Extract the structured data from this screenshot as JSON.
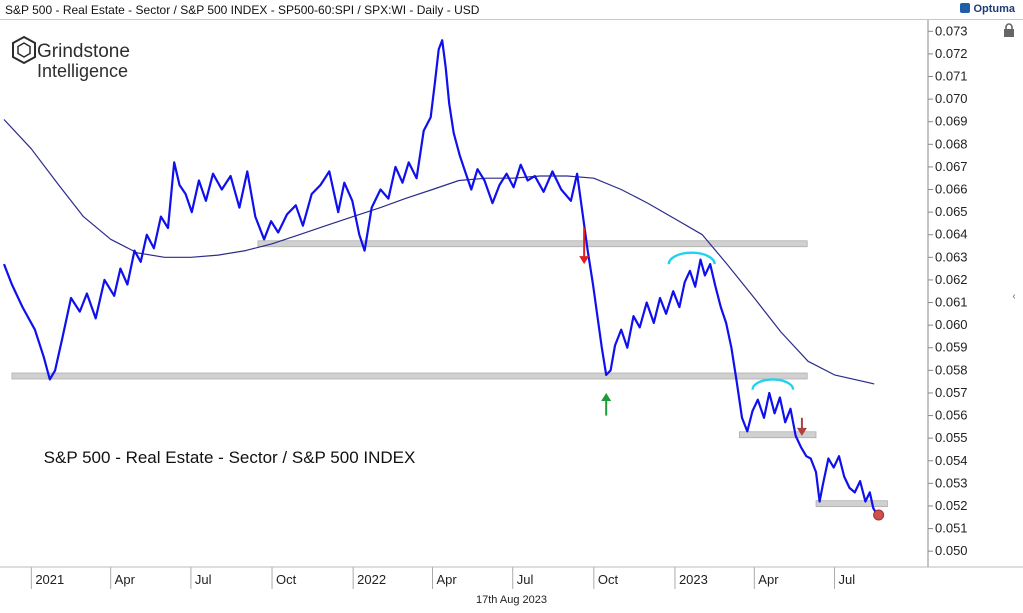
{
  "header": {
    "title": "S&P 500 - Real Estate - Sector / S&P 500 INDEX - SP500-60:SPI / SPX:WI - Daily - USD",
    "brand": "Optuma"
  },
  "watermark": {
    "line1": "Grindstone",
    "line2": "Intelligence"
  },
  "footer": {
    "date": "17th Aug 2023"
  },
  "colors": {
    "price": "#1010ee",
    "ma": "#2b2b8a",
    "support": "#d0d0d0",
    "arc": "#22d0f0",
    "arrow_down": "#e02020",
    "arrow_down2": "#b04040",
    "arrow_up": "#1e9a3a",
    "dot": "#d05050"
  },
  "chart_data": {
    "type": "line",
    "title": "S&P 500 - Real Estate - Sector / S&P 500 INDEX",
    "xlabel": "",
    "ylabel": "",
    "ylim": [
      0.0493,
      0.0735
    ],
    "xlim": [
      "2020-12-01",
      "2023-10-15"
    ],
    "grid": false,
    "y_ticks": [
      "0.073",
      "0.072",
      "0.071",
      "0.070",
      "0.069",
      "0.068",
      "0.067",
      "0.066",
      "0.065",
      "0.064",
      "0.063",
      "0.062",
      "0.061",
      "0.060",
      "0.059",
      "0.058",
      "0.057",
      "0.056",
      "0.055",
      "0.054",
      "0.053",
      "0.052",
      "0.051",
      "0.050"
    ],
    "x_ticks": [
      {
        "date": "2021-01-01",
        "label": "2021"
      },
      {
        "date": "2021-04-01",
        "label": "Apr"
      },
      {
        "date": "2021-07-01",
        "label": "Jul"
      },
      {
        "date": "2021-10-01",
        "label": "Oct"
      },
      {
        "date": "2022-01-01",
        "label": "2022"
      },
      {
        "date": "2022-04-01",
        "label": "Apr"
      },
      {
        "date": "2022-07-01",
        "label": "Jul"
      },
      {
        "date": "2022-10-01",
        "label": "Oct"
      },
      {
        "date": "2023-01-01",
        "label": "2023"
      },
      {
        "date": "2023-04-01",
        "label": "Apr"
      },
      {
        "date": "2023-07-01",
        "label": "Jul"
      }
    ],
    "series": [
      {
        "name": "S&P 500 - Real Estate - Sector / S&P 500 INDEX",
        "role": "price",
        "points": [
          [
            "2020-12-01",
            0.0627
          ],
          [
            "2020-12-10",
            0.0618
          ],
          [
            "2020-12-22",
            0.0608
          ],
          [
            "2021-01-05",
            0.0598
          ],
          [
            "2021-01-15",
            0.0586
          ],
          [
            "2021-01-22",
            0.0576
          ],
          [
            "2021-01-28",
            0.058
          ],
          [
            "2021-02-05",
            0.0594
          ],
          [
            "2021-02-15",
            0.0612
          ],
          [
            "2021-02-25",
            0.0606
          ],
          [
            "2021-03-05",
            0.0614
          ],
          [
            "2021-03-15",
            0.0603
          ],
          [
            "2021-03-25",
            0.062
          ],
          [
            "2021-04-05",
            0.0613
          ],
          [
            "2021-04-12",
            0.0625
          ],
          [
            "2021-04-20",
            0.0618
          ],
          [
            "2021-04-28",
            0.0633
          ],
          [
            "2021-05-05",
            0.0628
          ],
          [
            "2021-05-12",
            0.064
          ],
          [
            "2021-05-20",
            0.0634
          ],
          [
            "2021-05-28",
            0.0648
          ],
          [
            "2021-06-05",
            0.0643
          ],
          [
            "2021-06-12",
            0.0672
          ],
          [
            "2021-06-18",
            0.0662
          ],
          [
            "2021-06-25",
            0.0658
          ],
          [
            "2021-07-02",
            0.065
          ],
          [
            "2021-07-10",
            0.0664
          ],
          [
            "2021-07-18",
            0.0655
          ],
          [
            "2021-07-26",
            0.0667
          ],
          [
            "2021-08-05",
            0.066
          ],
          [
            "2021-08-15",
            0.0666
          ],
          [
            "2021-08-25",
            0.0652
          ],
          [
            "2021-09-03",
            0.0668
          ],
          [
            "2021-09-12",
            0.0648
          ],
          [
            "2021-09-22",
            0.0638
          ],
          [
            "2021-09-30",
            0.0646
          ],
          [
            "2021-10-08",
            0.0641
          ],
          [
            "2021-10-18",
            0.0649
          ],
          [
            "2021-10-28",
            0.0653
          ],
          [
            "2021-11-05",
            0.0644
          ],
          [
            "2021-11-15",
            0.0658
          ],
          [
            "2021-11-25",
            0.0662
          ],
          [
            "2021-12-05",
            0.0668
          ],
          [
            "2021-12-15",
            0.065
          ],
          [
            "2021-12-22",
            0.0663
          ],
          [
            "2021-12-31",
            0.0655
          ],
          [
            "2022-01-08",
            0.064
          ],
          [
            "2022-01-14",
            0.0633
          ],
          [
            "2022-01-22",
            0.0652
          ],
          [
            "2022-02-01",
            0.066
          ],
          [
            "2022-02-10",
            0.0656
          ],
          [
            "2022-02-18",
            0.067
          ],
          [
            "2022-02-26",
            0.0663
          ],
          [
            "2022-03-05",
            0.0672
          ],
          [
            "2022-03-14",
            0.0665
          ],
          [
            "2022-03-22",
            0.0686
          ],
          [
            "2022-03-30",
            0.0692
          ],
          [
            "2022-04-04",
            0.0708
          ],
          [
            "2022-04-08",
            0.0722
          ],
          [
            "2022-04-12",
            0.0726
          ],
          [
            "2022-04-16",
            0.0714
          ],
          [
            "2022-04-20",
            0.0698
          ],
          [
            "2022-04-25",
            0.0685
          ],
          [
            "2022-05-02",
            0.0675
          ],
          [
            "2022-05-08",
            0.0668
          ],
          [
            "2022-05-15",
            0.066
          ],
          [
            "2022-05-22",
            0.0669
          ],
          [
            "2022-05-30",
            0.0664
          ],
          [
            "2022-06-08",
            0.0654
          ],
          [
            "2022-06-16",
            0.0662
          ],
          [
            "2022-06-24",
            0.0667
          ],
          [
            "2022-07-02",
            0.0661
          ],
          [
            "2022-07-10",
            0.0671
          ],
          [
            "2022-07-18",
            0.0664
          ],
          [
            "2022-07-26",
            0.0666
          ],
          [
            "2022-08-05",
            0.0659
          ],
          [
            "2022-08-15",
            0.0668
          ],
          [
            "2022-08-25",
            0.066
          ],
          [
            "2022-09-05",
            0.0655
          ],
          [
            "2022-09-12",
            0.0667
          ],
          [
            "2022-09-18",
            0.065
          ],
          [
            "2022-09-24",
            0.0633
          ],
          [
            "2022-09-30",
            0.0618
          ],
          [
            "2022-10-05",
            0.0604
          ],
          [
            "2022-10-10",
            0.059
          ],
          [
            "2022-10-15",
            0.0578
          ],
          [
            "2022-10-20",
            0.058
          ],
          [
            "2022-10-25",
            0.0591
          ],
          [
            "2022-11-01",
            0.0598
          ],
          [
            "2022-11-08",
            0.059
          ],
          [
            "2022-11-15",
            0.0604
          ],
          [
            "2022-11-22",
            0.0599
          ],
          [
            "2022-11-30",
            0.061
          ],
          [
            "2022-12-08",
            0.0601
          ],
          [
            "2022-12-15",
            0.0612
          ],
          [
            "2022-12-22",
            0.0605
          ],
          [
            "2022-12-30",
            0.0615
          ],
          [
            "2023-01-06",
            0.0608
          ],
          [
            "2023-01-12",
            0.0619
          ],
          [
            "2023-01-18",
            0.0624
          ],
          [
            "2023-01-24",
            0.0617
          ],
          [
            "2023-01-30",
            0.0629
          ],
          [
            "2023-02-04",
            0.0622
          ],
          [
            "2023-02-10",
            0.0627
          ],
          [
            "2023-02-16",
            0.0617
          ],
          [
            "2023-02-22",
            0.0608
          ],
          [
            "2023-02-28",
            0.0601
          ],
          [
            "2023-03-06",
            0.059
          ],
          [
            "2023-03-12",
            0.0575
          ],
          [
            "2023-03-18",
            0.0559
          ],
          [
            "2023-03-24",
            0.0553
          ],
          [
            "2023-03-30",
            0.0562
          ],
          [
            "2023-04-05",
            0.0567
          ],
          [
            "2023-04-12",
            0.0559
          ],
          [
            "2023-04-18",
            0.057
          ],
          [
            "2023-04-24",
            0.0561
          ],
          [
            "2023-04-30",
            0.0568
          ],
          [
            "2023-05-06",
            0.0557
          ],
          [
            "2023-05-12",
            0.0563
          ],
          [
            "2023-05-18",
            0.0551
          ],
          [
            "2023-05-24",
            0.0546
          ],
          [
            "2023-05-30",
            0.0542
          ],
          [
            "2023-06-04",
            0.0541
          ],
          [
            "2023-06-10",
            0.0535
          ],
          [
            "2023-06-14",
            0.0522
          ],
          [
            "2023-06-18",
            0.053
          ],
          [
            "2023-06-24",
            0.0541
          ],
          [
            "2023-06-30",
            0.0537
          ],
          [
            "2023-07-06",
            0.0542
          ],
          [
            "2023-07-12",
            0.0533
          ],
          [
            "2023-07-18",
            0.0528
          ],
          [
            "2023-07-24",
            0.0526
          ],
          [
            "2023-07-30",
            0.0531
          ],
          [
            "2023-08-05",
            0.0522
          ],
          [
            "2023-08-10",
            0.0526
          ],
          [
            "2023-08-14",
            0.0519
          ],
          [
            "2023-08-17",
            0.0517
          ]
        ]
      },
      {
        "name": "Moving Average",
        "role": "ma",
        "points": [
          [
            "2020-12-01",
            0.0691
          ],
          [
            "2021-01-01",
            0.0678
          ],
          [
            "2021-02-01",
            0.0662
          ],
          [
            "2021-03-01",
            0.0648
          ],
          [
            "2021-04-01",
            0.0638
          ],
          [
            "2021-05-01",
            0.0632
          ],
          [
            "2021-06-01",
            0.063
          ],
          [
            "2021-07-01",
            0.063
          ],
          [
            "2021-08-01",
            0.0631
          ],
          [
            "2021-09-01",
            0.0633
          ],
          [
            "2021-10-01",
            0.0636
          ],
          [
            "2021-11-01",
            0.064
          ],
          [
            "2021-12-01",
            0.0644
          ],
          [
            "2022-01-01",
            0.0648
          ],
          [
            "2022-02-01",
            0.0652
          ],
          [
            "2022-03-01",
            0.0656
          ],
          [
            "2022-04-01",
            0.066
          ],
          [
            "2022-05-01",
            0.0664
          ],
          [
            "2022-06-01",
            0.0665
          ],
          [
            "2022-07-01",
            0.0665
          ],
          [
            "2022-08-01",
            0.0666
          ],
          [
            "2022-09-01",
            0.0666
          ],
          [
            "2022-10-01",
            0.0665
          ],
          [
            "2022-11-01",
            0.066
          ],
          [
            "2022-12-01",
            0.0654
          ],
          [
            "2023-01-01",
            0.0647
          ],
          [
            "2023-02-01",
            0.064
          ],
          [
            "2023-03-01",
            0.0627
          ],
          [
            "2023-04-01",
            0.0612
          ],
          [
            "2023-05-01",
            0.0597
          ],
          [
            "2023-06-01",
            0.0584
          ],
          [
            "2023-07-01",
            0.0578
          ],
          [
            "2023-08-15",
            0.0574
          ]
        ]
      }
    ],
    "annotations": {
      "support_lines": [
        {
          "y": 0.0636,
          "x0": "2021-09-15",
          "x1": "2023-05-31"
        },
        {
          "y": 0.05775,
          "x0": "2020-12-10",
          "x1": "2023-05-31"
        },
        {
          "y": 0.05515,
          "x0": "2023-03-15",
          "x1": "2023-06-10"
        },
        {
          "y": 0.0521,
          "x0": "2023-06-10",
          "x1": "2023-08-30"
        }
      ],
      "arcs": [
        {
          "x0": "2022-12-25",
          "x1": "2023-02-15",
          "y": 0.0627
        },
        {
          "x0": "2023-03-30",
          "x1": "2023-05-15",
          "y": 0.05715
        }
      ],
      "arrows": [
        {
          "date": "2022-09-20",
          "y_from": 0.0643,
          "y_to": 0.0627,
          "dir": "down",
          "color_key": "arrow_down"
        },
        {
          "date": "2022-10-15",
          "y_from": 0.056,
          "y_to": 0.057,
          "dir": "up",
          "color_key": "arrow_up"
        },
        {
          "date": "2023-05-25",
          "y_from": 0.0559,
          "y_to": 0.0551,
          "dir": "down",
          "color_key": "arrow_down2"
        }
      ],
      "dot": {
        "date": "2023-08-20",
        "y": 0.0516
      },
      "label": {
        "text": "S&P 500 - Real Estate - Sector / S&P 500 INDEX",
        "date": "2021-01-15",
        "y": 0.0539
      }
    }
  }
}
